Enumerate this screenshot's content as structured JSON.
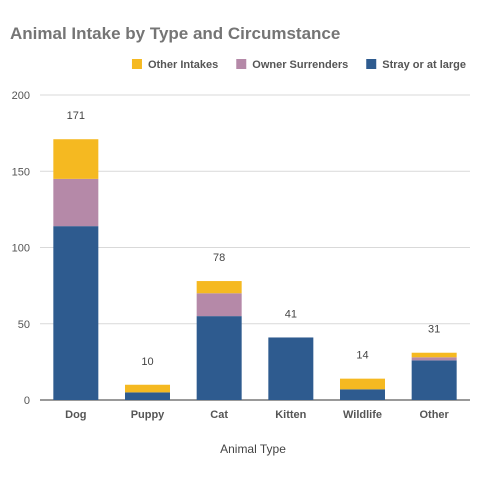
{
  "chart_data": {
    "type": "bar",
    "stacked": true,
    "title": "Animal Intake by Type and Circumstance",
    "xlabel": "Animal Type",
    "ylabel": "",
    "ylim": [
      0,
      200
    ],
    "yticks": [
      0,
      50,
      100,
      150,
      200
    ],
    "grid": true,
    "legend_position": "top-right",
    "categories": [
      "Dog",
      "Puppy",
      "Cat",
      "Kitten",
      "Wildlife",
      "Other"
    ],
    "series": [
      {
        "name": "Stray or at large",
        "color": "#2e5b8f",
        "values": [
          114,
          5,
          55,
          41,
          7,
          26
        ]
      },
      {
        "name": "Owner Surrenders",
        "color": "#b589a8",
        "values": [
          31,
          0,
          15,
          0,
          0,
          2
        ]
      },
      {
        "name": "Other Intakes",
        "color": "#f5b921",
        "values": [
          26,
          5,
          8,
          0,
          7,
          3
        ]
      }
    ],
    "totals": [
      171,
      10,
      78,
      41,
      14,
      31
    ],
    "legend_order": [
      "Other Intakes",
      "Owner Surrenders",
      "Stray or at large"
    ]
  }
}
